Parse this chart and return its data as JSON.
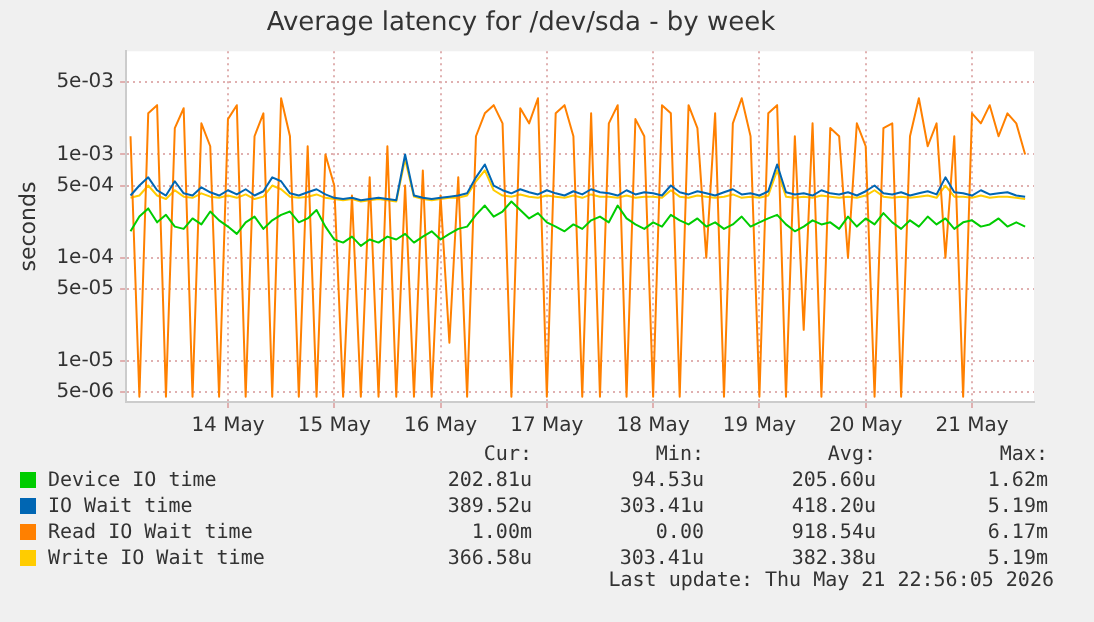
{
  "chart_data": {
    "type": "line",
    "title": "Average latency for /dev/sda - by week",
    "ylabel": "seconds",
    "log": "y",
    "grid": true,
    "legend": "bottom",
    "marker": "none",
    "line_style": "solid",
    "xlim": [
      "2026-05-13T13:00",
      "2026-05-22T02:00"
    ],
    "xticks": [
      {
        "value": "2026-05-14T12:00",
        "label": "14 May"
      },
      {
        "value": "2026-05-15T12:00",
        "label": "15 May"
      },
      {
        "value": "2026-05-16T12:00",
        "label": "16 May"
      },
      {
        "value": "2026-05-17T12:00",
        "label": "17 May"
      },
      {
        "value": "2026-05-18T12:00",
        "label": "18 May"
      },
      {
        "value": "2026-05-19T12:00",
        "label": "19 May"
      },
      {
        "value": "2026-05-20T12:00",
        "label": "20 May"
      },
      {
        "value": "2026-05-21T12:00",
        "label": "21 May"
      }
    ],
    "ylim": [
      4e-06,
      0.01
    ],
    "yticks": [
      {
        "value": 5e-06,
        "label": "5e-06"
      },
      {
        "value": 1e-05,
        "label": "1e-05"
      },
      {
        "value": 5e-05,
        "label": "5e-05"
      },
      {
        "value": 0.0001,
        "label": "1e-04"
      },
      {
        "value": 0.0005,
        "label": "5e-04"
      },
      {
        "value": 0.001,
        "label": "1e-03"
      },
      {
        "value": 0.005,
        "label": "5e-03"
      }
    ],
    "x": [
      "2026-05-13T14:00",
      "2026-05-13T16:00",
      "2026-05-13T18:00",
      "2026-05-13T20:00",
      "2026-05-13T22:00",
      "2026-05-14T00:00",
      "2026-05-14T02:00",
      "2026-05-14T04:00",
      "2026-05-14T06:00",
      "2026-05-14T08:00",
      "2026-05-14T10:00",
      "2026-05-14T12:00",
      "2026-05-14T14:00",
      "2026-05-14T16:00",
      "2026-05-14T18:00",
      "2026-05-14T20:00",
      "2026-05-14T22:00",
      "2026-05-15T00:00",
      "2026-05-15T02:00",
      "2026-05-15T04:00",
      "2026-05-15T06:00",
      "2026-05-15T08:00",
      "2026-05-15T10:00",
      "2026-05-15T12:00",
      "2026-05-15T14:00",
      "2026-05-15T16:00",
      "2026-05-15T18:00",
      "2026-05-15T20:00",
      "2026-05-15T22:00",
      "2026-05-16T00:00",
      "2026-05-16T02:00",
      "2026-05-16T04:00",
      "2026-05-16T06:00",
      "2026-05-16T08:00",
      "2026-05-16T10:00",
      "2026-05-16T12:00",
      "2026-05-16T14:00",
      "2026-05-16T16:00",
      "2026-05-16T18:00",
      "2026-05-16T20:00",
      "2026-05-16T22:00",
      "2026-05-17T00:00",
      "2026-05-17T02:00",
      "2026-05-17T04:00",
      "2026-05-17T06:00",
      "2026-05-17T08:00",
      "2026-05-17T10:00",
      "2026-05-17T12:00",
      "2026-05-17T14:00",
      "2026-05-17T16:00",
      "2026-05-17T18:00",
      "2026-05-17T20:00",
      "2026-05-17T22:00",
      "2026-05-18T00:00",
      "2026-05-18T02:00",
      "2026-05-18T04:00",
      "2026-05-18T06:00",
      "2026-05-18T08:00",
      "2026-05-18T10:00",
      "2026-05-18T12:00",
      "2026-05-18T14:00",
      "2026-05-18T16:00",
      "2026-05-18T18:00",
      "2026-05-18T20:00",
      "2026-05-18T22:00",
      "2026-05-19T00:00",
      "2026-05-19T02:00",
      "2026-05-19T04:00",
      "2026-05-19T06:00",
      "2026-05-19T08:00",
      "2026-05-19T10:00",
      "2026-05-19T12:00",
      "2026-05-19T14:00",
      "2026-05-19T16:00",
      "2026-05-19T18:00",
      "2026-05-19T20:00",
      "2026-05-19T22:00",
      "2026-05-20T00:00",
      "2026-05-20T02:00",
      "2026-05-20T04:00",
      "2026-05-20T06:00",
      "2026-05-20T08:00",
      "2026-05-20T10:00",
      "2026-05-20T12:00",
      "2026-05-20T14:00",
      "2026-05-20T16:00",
      "2026-05-20T18:00",
      "2026-05-20T20:00",
      "2026-05-20T22:00",
      "2026-05-21T00:00",
      "2026-05-21T02:00",
      "2026-05-21T04:00",
      "2026-05-21T06:00",
      "2026-05-21T08:00",
      "2026-05-21T10:00",
      "2026-05-21T12:00",
      "2026-05-21T14:00",
      "2026-05-21T16:00",
      "2026-05-21T18:00",
      "2026-05-21T20:00",
      "2026-05-21T22:00",
      "2026-05-22T00:00"
    ],
    "series": [
      {
        "name": "Device IO time",
        "color": "#00cc00",
        "values": [
          0.00018,
          0.00025,
          0.0003,
          0.00022,
          0.00026,
          0.0002,
          0.00019,
          0.00024,
          0.00021,
          0.00028,
          0.00023,
          0.0002,
          0.00017,
          0.00022,
          0.00025,
          0.00019,
          0.00023,
          0.00026,
          0.00028,
          0.00022,
          0.00024,
          0.00029,
          0.0002,
          0.00015,
          0.00014,
          0.00016,
          0.00013,
          0.00015,
          0.00014,
          0.00016,
          0.00015,
          0.00017,
          0.00014,
          0.00016,
          0.00018,
          0.00015,
          0.00017,
          0.00019,
          0.0002,
          0.00026,
          0.00032,
          0.00025,
          0.00028,
          0.00035,
          0.00029,
          0.00024,
          0.00027,
          0.00022,
          0.0002,
          0.00018,
          0.00021,
          0.00019,
          0.00023,
          0.00025,
          0.00022,
          0.00032,
          0.00024,
          0.00021,
          0.00019,
          0.00022,
          0.0002,
          0.00026,
          0.00023,
          0.00021,
          0.00024,
          0.0002,
          0.00022,
          0.00019,
          0.00021,
          0.00025,
          0.0002,
          0.00022,
          0.00024,
          0.00026,
          0.00021,
          0.00018,
          0.0002,
          0.00023,
          0.00021,
          0.00022,
          0.00019,
          0.00025,
          0.0002,
          0.00024,
          0.00021,
          0.00027,
          0.00022,
          0.00019,
          0.00023,
          0.0002,
          0.00025,
          0.00021,
          0.00024,
          0.00019,
          0.00022,
          0.00023,
          0.0002,
          0.00021,
          0.00024,
          0.0002,
          0.00022,
          0.0002
        ]
      },
      {
        "name": "IO Wait time",
        "color": "#0066b3",
        "values": [
          0.0004,
          0.0005,
          0.0006,
          0.00045,
          0.0004,
          0.00055,
          0.00042,
          0.0004,
          0.00048,
          0.00043,
          0.0004,
          0.00045,
          0.00041,
          0.00046,
          0.0004,
          0.00044,
          0.0006,
          0.00055,
          0.00042,
          0.0004,
          0.00043,
          0.00046,
          0.00041,
          0.00038,
          0.00037,
          0.00038,
          0.00036,
          0.00037,
          0.00038,
          0.00037,
          0.00036,
          0.001,
          0.0004,
          0.00038,
          0.00037,
          0.00038,
          0.00039,
          0.0004,
          0.00042,
          0.0006,
          0.0008,
          0.0005,
          0.00045,
          0.00042,
          0.00046,
          0.00043,
          0.00041,
          0.00045,
          0.00042,
          0.0004,
          0.00044,
          0.00041,
          0.00046,
          0.00043,
          0.00042,
          0.0004,
          0.00045,
          0.00041,
          0.00043,
          0.00042,
          0.0004,
          0.0005,
          0.00043,
          0.00041,
          0.00044,
          0.00042,
          0.0004,
          0.00043,
          0.00046,
          0.00041,
          0.00042,
          0.0004,
          0.00044,
          0.0008,
          0.00043,
          0.00041,
          0.00042,
          0.0004,
          0.00045,
          0.00042,
          0.00041,
          0.00043,
          0.0004,
          0.00044,
          0.0005,
          0.00042,
          0.00041,
          0.00043,
          0.0004,
          0.00042,
          0.00044,
          0.00041,
          0.0006,
          0.00043,
          0.00042,
          0.0004,
          0.00045,
          0.00041,
          0.00042,
          0.00043,
          0.0004,
          0.00039
        ]
      },
      {
        "name": "Read IO Wait time",
        "color": "#ff8000",
        "values": [
          0.0015,
          4.5e-06,
          0.0025,
          0.003,
          4.5e-06,
          0.0018,
          0.0028,
          4.5e-06,
          0.002,
          0.0012,
          4.5e-06,
          0.0022,
          0.003,
          4.5e-06,
          0.0015,
          0.0025,
          4.5e-06,
          0.0035,
          0.0015,
          4.5e-06,
          0.0012,
          4.5e-06,
          0.001,
          0.0005,
          4.5e-06,
          0.0004,
          4.5e-06,
          0.0006,
          4.5e-06,
          0.0012,
          4.5e-06,
          0.0005,
          4.5e-06,
          0.0007,
          4.5e-06,
          0.0004,
          1.5e-05,
          0.0006,
          4.5e-06,
          0.0015,
          0.0025,
          0.003,
          0.002,
          4.5e-06,
          0.0028,
          0.002,
          0.0035,
          4.5e-06,
          0.0025,
          0.003,
          0.0015,
          4.5e-06,
          0.0025,
          4.5e-06,
          0.002,
          0.003,
          4.5e-06,
          0.0022,
          0.0015,
          4.5e-06,
          0.003,
          0.0025,
          4.5e-06,
          0.003,
          0.0018,
          0.0001,
          0.0025,
          4.5e-06,
          0.002,
          0.0035,
          0.0015,
          4.5e-06,
          0.0025,
          0.003,
          4.5e-06,
          0.0015,
          2e-05,
          0.002,
          4.5e-06,
          0.0018,
          0.0015,
          0.0001,
          0.002,
          0.0012,
          4.5e-06,
          0.0018,
          0.002,
          4.5e-06,
          0.0015,
          0.0035,
          0.0012,
          0.002,
          0.0001,
          0.0015,
          4.5e-06,
          0.0025,
          0.002,
          0.003,
          0.0015,
          0.0025,
          0.002,
          0.001
        ]
      },
      {
        "name": "Write IO Wait time",
        "color": "#ffcc00",
        "values": [
          0.00038,
          0.0004,
          0.0005,
          0.0004,
          0.00037,
          0.00045,
          0.00039,
          0.00038,
          0.00042,
          0.00039,
          0.00038,
          0.0004,
          0.00038,
          0.00041,
          0.00037,
          0.00039,
          0.0005,
          0.00046,
          0.00039,
          0.00038,
          0.00039,
          0.00041,
          0.00038,
          0.00037,
          0.00036,
          0.00037,
          0.00035,
          0.00036,
          0.00037,
          0.00036,
          0.00035,
          0.0009,
          0.00039,
          0.00037,
          0.00036,
          0.00037,
          0.00038,
          0.00038,
          0.0004,
          0.00055,
          0.0007,
          0.00045,
          0.0004,
          0.00039,
          0.00041,
          0.00039,
          0.00038,
          0.0004,
          0.00039,
          0.00038,
          0.0004,
          0.00038,
          0.00041,
          0.00039,
          0.00039,
          0.00038,
          0.0004,
          0.00038,
          0.00039,
          0.00039,
          0.00038,
          0.00045,
          0.00039,
          0.00038,
          0.0004,
          0.00039,
          0.00038,
          0.00039,
          0.00041,
          0.00038,
          0.00039,
          0.00038,
          0.0004,
          0.0007,
          0.00039,
          0.00038,
          0.00039,
          0.00038,
          0.0004,
          0.00039,
          0.00038,
          0.00039,
          0.00038,
          0.0004,
          0.00045,
          0.00039,
          0.00038,
          0.00039,
          0.00038,
          0.00039,
          0.0004,
          0.00038,
          0.0005,
          0.00039,
          0.00039,
          0.00038,
          0.0004,
          0.00038,
          0.00039,
          0.00039,
          0.00038,
          0.00037
        ]
      }
    ],
    "annotations": [
      "Cur:",
      "Min:",
      "Avg:",
      "Max:",
      "202.81u",
      "94.53u",
      "205.60u",
      "1.62m",
      "389.52u",
      "303.41u",
      "418.20u",
      "5.19m",
      "1.00m",
      "0.00",
      "918.54u",
      "6.17m",
      "366.58u",
      "303.41u",
      "382.38u",
      "5.19m",
      "Last update: Thu May 21 22:56:05 2026"
    ]
  }
}
